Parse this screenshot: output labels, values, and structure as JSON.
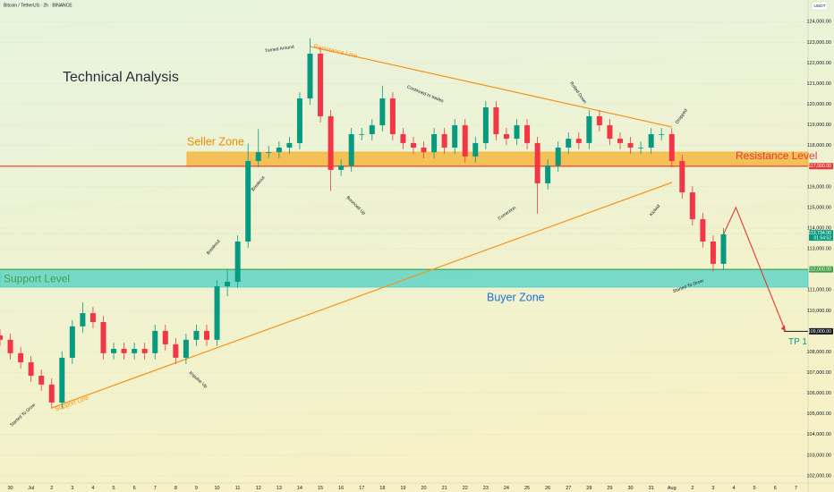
{
  "chart_data": {
    "type": "candlestick",
    "header": "Bitcoin / TetherUS · 2h · BINANCE",
    "currency": "USDT",
    "title": "Technical Analysis",
    "x_labels": [
      "30",
      "Jul",
      "2",
      "3",
      "4",
      "5",
      "6",
      "7",
      "8",
      "9",
      "10",
      "11",
      "12",
      "13",
      "14",
      "15",
      "16",
      "17",
      "18",
      "19",
      "20",
      "21",
      "22",
      "23",
      "24",
      "25",
      "26",
      "27",
      "28",
      "29",
      "30",
      "31",
      "Aug",
      "2",
      "3",
      "4",
      "5",
      "6",
      "7"
    ],
    "open": [
      108800,
      108590,
      107940,
      107500,
      106850,
      106420,
      105550,
      107720,
      109240,
      109880,
      109450,
      107940,
      108150,
      107940,
      108150,
      107940,
      109020,
      108370,
      107720,
      108590,
      109020,
      108590,
      111180,
      111400,
      113350,
      117250,
      117680,
      117680,
      117900,
      118120,
      120280,
      122450,
      119420,
      116820,
      117030,
      118550,
      118550,
      118980,
      120280,
      118550,
      118120,
      117900,
      117680,
      118550,
      117900,
      118980,
      117470,
      118120,
      119850,
      118550,
      118330,
      118980,
      118120,
      116170,
      117030,
      117900,
      118330,
      118120,
      119420,
      118980,
      118330,
      118120,
      117900,
      117900,
      118550,
      118550,
      117250,
      115730,
      114430,
      113350,
      112270
    ],
    "high": [
      109100,
      108890,
      108240,
      107800,
      107150,
      106720,
      108020,
      109540,
      110400,
      110180,
      109750,
      108450,
      108450,
      108450,
      108450,
      109320,
      109320,
      108670,
      108890,
      109320,
      109320,
      111480,
      112000,
      113650,
      118100,
      118800,
      117980,
      118200,
      118420,
      120580,
      123200,
      122750,
      119720,
      117330,
      118850,
      118850,
      119280,
      120900,
      120580,
      118850,
      118420,
      118200,
      118850,
      118850,
      119280,
      119280,
      118420,
      120150,
      120150,
      118850,
      119280,
      119280,
      118420,
      117330,
      118200,
      118630,
      118630,
      119720,
      119720,
      119280,
      118630,
      118420,
      118200,
      118850,
      118850,
      118850,
      117550,
      116030,
      114730,
      113650,
      114000
    ],
    "low": [
      108290,
      107640,
      107200,
      106550,
      106120,
      105250,
      105250,
      107420,
      108940,
      109150,
      107640,
      107640,
      107640,
      107640,
      107640,
      107640,
      108070,
      107420,
      107420,
      108290,
      108290,
      108290,
      110700,
      111100,
      113050,
      116950,
      117380,
      117380,
      117600,
      117820,
      119980,
      119120,
      115800,
      116520,
      116730,
      118250,
      118250,
      118680,
      118250,
      117820,
      117600,
      117380,
      117380,
      117600,
      117600,
      117170,
      117170,
      117820,
      118250,
      118030,
      118030,
      117820,
      114700,
      115870,
      116730,
      117600,
      117820,
      117820,
      118680,
      118030,
      117820,
      117600,
      117600,
      117600,
      118250,
      116950,
      115430,
      114130,
      113050,
      111900,
      111970
    ],
    "close": [
      108590,
      107940,
      107500,
      106850,
      106420,
      105550,
      107720,
      109240,
      109880,
      109450,
      107940,
      108150,
      107940,
      108150,
      107940,
      109020,
      108370,
      107720,
      108590,
      109020,
      108590,
      111180,
      111400,
      113350,
      117250,
      117680,
      117680,
      117900,
      118120,
      120280,
      122450,
      119420,
      116820,
      117030,
      118550,
      118550,
      118980,
      120280,
      118550,
      118120,
      117900,
      117680,
      118550,
      117900,
      118980,
      117470,
      118120,
      119850,
      118550,
      118330,
      118980,
      118120,
      116170,
      117030,
      117900,
      118330,
      118120,
      119420,
      118980,
      118330,
      118120,
      117900,
      117900,
      118550,
      118550,
      117250,
      115730,
      114430,
      113350,
      112270,
      113700
    ],
    "up_color": "#089981",
    "down_color": "#f23645",
    "ylim": [
      101650,
      125050
    ],
    "yticks": [
      {
        "value": 102000,
        "label": "102,000.00"
      },
      {
        "value": 103000,
        "label": "103,000.00"
      },
      {
        "value": 104000,
        "label": "104,000.00"
      },
      {
        "value": 105000,
        "label": "105,000.00"
      },
      {
        "value": 106000,
        "label": "106,000.00"
      },
      {
        "value": 107000,
        "label": "107,000.00"
      },
      {
        "value": 108000,
        "label": "108,000.00"
      },
      {
        "value": 110000,
        "label": "110,000.00"
      },
      {
        "value": 111000,
        "label": "111,000.00"
      },
      {
        "value": 113000,
        "label": "113,000.00"
      },
      {
        "value": 114000,
        "label": "114,000.00"
      },
      {
        "value": 115000,
        "label": "115,000.00"
      },
      {
        "value": 116000,
        "label": "116,000.00"
      },
      {
        "value": 118000,
        "label": "118,000.00"
      },
      {
        "value": 119000,
        "label": "119,000.00"
      },
      {
        "value": 120000,
        "label": "120,000.00"
      },
      {
        "value": 121000,
        "label": "121,000.00"
      },
      {
        "value": 122000,
        "label": "122,000.00"
      },
      {
        "value": 123000,
        "label": "123,000.00"
      },
      {
        "value": 124000,
        "label": "124,000.00"
      }
    ],
    "grid": true,
    "levels": [
      {
        "name": "Resistance Level",
        "value": 117000,
        "label": "117,000.00",
        "color": "#e53935"
      },
      {
        "name": "Support Level",
        "value": 112000,
        "label": "112,000.00",
        "color": "#43a047"
      },
      {
        "name": "TP 1",
        "value": 109000,
        "label": "109,000.00",
        "color": "#131722"
      }
    ],
    "zones": [
      {
        "name": "Seller Zone",
        "range": [
          116990,
          117680
        ],
        "color": "#f5b02c",
        "text_color": "#f08c00"
      },
      {
        "name": "Buyer Zone",
        "range": [
          111140,
          112000
        ],
        "color": "#4dd0c4",
        "text_color": "#1e6fd9"
      }
    ],
    "trendlines": [
      {
        "name": "Resistance Line",
        "points": [
          [
            30,
            122800
          ],
          [
            65,
            118900
          ]
        ],
        "color": "#f7931a"
      },
      {
        "name": "Support Line",
        "points": [
          [
            5,
            105290
          ],
          [
            65,
            116210
          ]
        ],
        "color": "#f7931a"
      }
    ],
    "projection": {
      "points": [
        [
          70,
          113700
        ],
        [
          71.2,
          115000
        ],
        [
          76,
          109000
        ]
      ],
      "color": "#e53935"
    },
    "last_price": {
      "value": 113734,
      "label": "113,734.00",
      "countdown": "01:54:52",
      "color": "#089981"
    },
    "annotations": [
      "Turned Around",
      "Continued to trades",
      "Rolled Down",
      "Dropped",
      "Breakout",
      "Bounced Up",
      "Correction",
      "Kicked",
      "Breakout",
      "Impulse Up",
      "Started To Grow",
      "Started To Grow"
    ]
  }
}
